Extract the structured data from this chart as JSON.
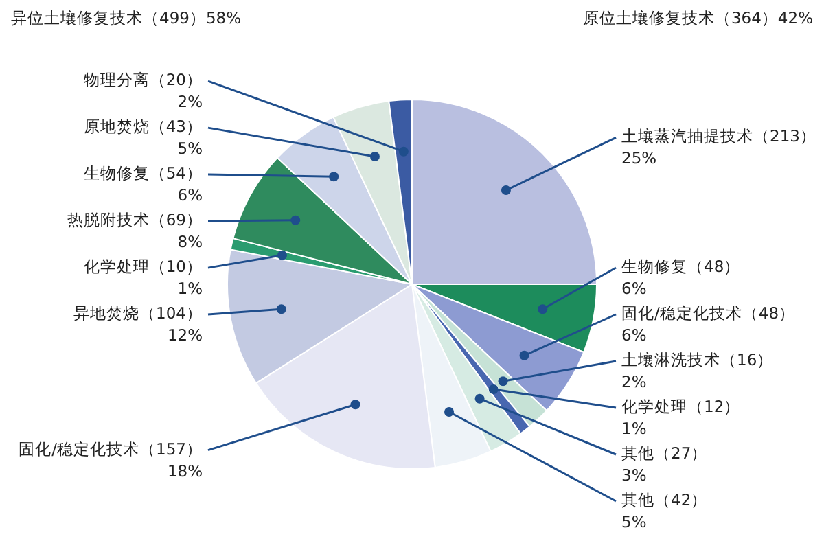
{
  "chart_data": {
    "type": "pie",
    "categories": [
      "土壤蒸汽抽提技术（213）",
      "生物修复（48）",
      "固化/稳定化技术（48）",
      "土壤淋洗技术（16）",
      "化学处理（12）",
      "其他（27）",
      "其他（42）",
      "固化/稳定化技术（157）",
      "异地焚烧（104）",
      "化学处理（10）",
      "热脱附技术（69）",
      "生物修复（54）",
      "原地焚烧（43）",
      "物理分离（20）"
    ],
    "values": [
      25,
      6,
      6,
      2,
      1,
      3,
      5,
      18,
      12,
      1,
      8,
      6,
      5,
      2
    ],
    "value_labels": [
      "25%",
      "6%",
      "6%",
      "2%",
      "1%",
      "3%",
      "5%",
      "18%",
      "12%",
      "1%",
      "8%",
      "6%",
      "5%",
      "2%"
    ],
    "colors": [
      "#b9bfe0",
      "#1d8c5c",
      "#8d9bd2",
      "#c6e2d6",
      "#4867b0",
      "#d6ebe3",
      "#eef3f8",
      "#e6e7f4",
      "#c3cae2",
      "#2a9c70",
      "#2f8b5e",
      "#cdd5ea",
      "#dbe8e0",
      "#3b5ba3"
    ],
    "legend": false,
    "annotations": [
      "异位土壤修复技术（499）58%",
      "原位土壤修复技术（364）42%"
    ]
  }
}
